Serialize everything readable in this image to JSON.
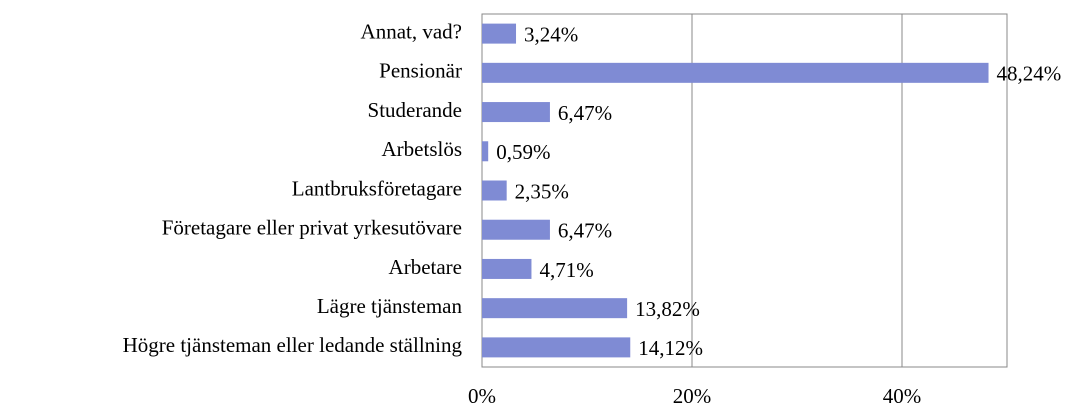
{
  "chart_data": {
    "type": "barh",
    "categories": [
      "Annat, vad?",
      "Pensionär",
      "Studerande",
      "Arbetslös",
      "Lantbruksföretagare",
      "Företagare eller privat yrkesutövare",
      "Arbetare",
      "Lägre tjänsteman",
      "Högre tjänsteman eller ledande ställning"
    ],
    "values": [
      3.24,
      48.24,
      6.47,
      0.59,
      2.35,
      6.47,
      4.71,
      13.82,
      14.12
    ],
    "value_labels": [
      "3,24%",
      "48,24%",
      "6,47%",
      "0,59%",
      "2,35%",
      "6,47%",
      "4,71%",
      "13,82%",
      "14,12%"
    ],
    "color": "#7f8bd4",
    "xlim": [
      0,
      50
    ],
    "xticks": [
      {
        "value": 0,
        "label": "0%"
      },
      {
        "value": 20,
        "label": "20%"
      },
      {
        "value": 40,
        "label": "40%"
      }
    ],
    "grid": true
  }
}
